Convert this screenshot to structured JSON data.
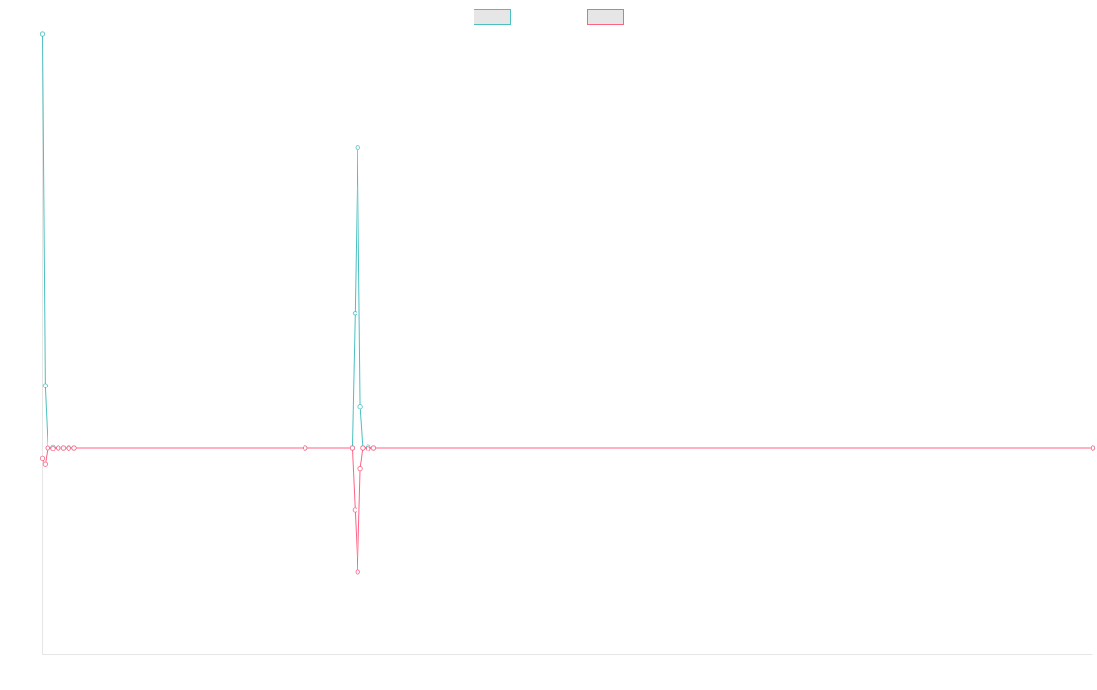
{
  "chart_data": {
    "type": "line",
    "title": "",
    "xlabel": "",
    "ylabel": "",
    "grid": false,
    "legend_position": "top-center",
    "x_range": [
      0,
      200
    ],
    "y_range": [
      -100,
      200
    ],
    "series": [
      {
        "name": "",
        "color": "#4bc0c0",
        "points": [
          [
            0,
            200
          ],
          [
            0.5,
            30
          ],
          [
            1,
            0
          ],
          [
            2,
            0.3
          ],
          [
            3,
            0
          ],
          [
            4,
            0
          ],
          [
            5,
            0.1
          ],
          [
            6,
            0
          ],
          [
            50,
            0
          ],
          [
            59,
            0
          ],
          [
            59.5,
            65
          ],
          [
            60,
            145
          ],
          [
            60.5,
            20
          ],
          [
            61,
            0
          ],
          [
            62,
            0.4
          ],
          [
            63,
            0
          ],
          [
            200,
            0
          ]
        ]
      },
      {
        "name": "",
        "color": "#ff6384",
        "points": [
          [
            0,
            -5
          ],
          [
            0.5,
            -8
          ],
          [
            1,
            0
          ],
          [
            2,
            -0.3
          ],
          [
            3,
            0
          ],
          [
            4,
            0
          ],
          [
            5,
            -0.1
          ],
          [
            6,
            0
          ],
          [
            50,
            0
          ],
          [
            59,
            0
          ],
          [
            59.5,
            -30
          ],
          [
            60,
            -60
          ],
          [
            60.5,
            -10
          ],
          [
            61,
            0
          ],
          [
            62,
            -0.4
          ],
          [
            63,
            0
          ],
          [
            200,
            0
          ]
        ]
      }
    ]
  }
}
